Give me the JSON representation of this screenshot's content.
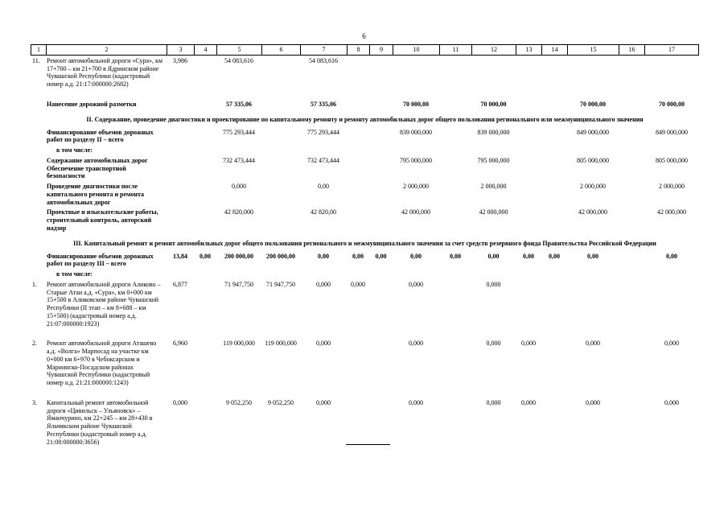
{
  "page": {
    "number": "6"
  },
  "table": {
    "column_headers": [
      "1",
      "2",
      "3",
      "4",
      "5",
      "6",
      "7",
      "8",
      "9",
      "10",
      "11",
      "12",
      "13",
      "14",
      "15",
      "16",
      "17"
    ],
    "rows": [
      {
        "type": "item",
        "num": "11.",
        "name": "Ремонт автомобильной дороги «Сура», км 17+700 – км 21+700 в Ядринском районе Чувашской Республики (кадастровый номер а.д. 21:17:000000:2682)",
        "bold": false,
        "values": {
          "3": "3,986",
          "5": "54 083,616",
          "7": "54 083,616"
        }
      },
      {
        "type": "total",
        "name": "Нанесение дорожной разметки",
        "bold": true,
        "values_bold": true,
        "values": {
          "5": "57 335,06",
          "7": "57 335,06",
          "10": "70 000,00",
          "12": "70 000,00",
          "15": "70 000,00",
          "17": "70 000,00"
        }
      },
      {
        "type": "section",
        "name": "II. Содержание, проведение диагностики и проектирование по капитальному ремонту и ремонту автомобильных дорог общего пользования регионального или межмуниципального значения"
      },
      {
        "type": "total",
        "name": "Финансирование объемов дорожных работ по разделу II – всего",
        "bold": true,
        "values": {
          "5": "775 293,444",
          "7": "775 293,444",
          "10": "839 000,000",
          "12": "839 000,000",
          "15": "849 000,000",
          "17": "849 000,000"
        }
      },
      {
        "type": "note",
        "name": "в том числе:",
        "bold": true
      },
      {
        "type": "total",
        "name": "Содержание автомобильных дорог Обеспечение транспортной безопасности",
        "bold": true,
        "values": {
          "5": "732 473,444",
          "7": "732 473,444",
          "10": "795 000,000",
          "12": "795 000,000",
          "15": "805 000,000",
          "17": "805 000,000"
        }
      },
      {
        "type": "total",
        "name": "Проведение диагностики после капитального ремонта и ремонта автомобильных дорог",
        "bold": true,
        "values": {
          "5": "0,000",
          "7": "0,00",
          "10": "2 000,000",
          "12": "2 000,000",
          "15": "2 000,000",
          "17": "2 000,000"
        }
      },
      {
        "type": "total",
        "name": "Проектные и изыскательские работы, строительный контроль, авторский надзор",
        "bold": true,
        "values": {
          "5": "42 820,000",
          "7": "42 820,00",
          "10": "42 000,000",
          "12": "42 000,000",
          "15": "42 000,000",
          "17": "42 000,000"
        }
      },
      {
        "type": "section",
        "name": "III. Капитальный ремонт и ремонт автомобильных дорог общего пользования регионального и межмуниципального значения за счет средств резервного фонда Правительства Российской Федерации"
      },
      {
        "type": "total",
        "name": "Финансирование объемов дорожных работ по разделу III – всего",
        "bold": true,
        "values_bold": true,
        "values": {
          "3": "13,84",
          "4": "0,00",
          "5": "200 000,00",
          "6": "200 000,00",
          "7": "0,00",
          "8": "0,00",
          "9": "0,00",
          "10": "0,00",
          "11": "0,00",
          "12": "0,00",
          "13": "0,00",
          "14": "0,00",
          "15": "0,00",
          "17": "0,00"
        }
      },
      {
        "type": "note",
        "name": "в том числе:",
        "bold": true
      },
      {
        "type": "item",
        "num": "1.",
        "name": "Ремонт автомобильной дороги Аликово – Старые Атаи а.д. «Сура», км 0+000 км 15+500 в Аликовском районе Чувашской Республики (II этап – км 8+688 – км 15+500) (кадастровый номер а.д. 21:07:000000:1923)",
        "bold": false,
        "values": {
          "3": "6,877",
          "5": "71 947,750",
          "6": "71 947,750",
          "7": "0,000",
          "8": "0,000",
          "10": "0,000",
          "12": "0,000"
        }
      },
      {
        "type": "item",
        "num": "2.",
        "name": "Ремонт автомобильной дороги Аташево а.д. «Волга» Марпосад на участке км 0+000 км 6+970 в Чебоксарском и Мариинско-Посадском районах Чувашской Республики (кадастровый номер а.д. 21:21:000000:1243)",
        "bold": false,
        "values": {
          "3": "6,960",
          "5": "119 000,000",
          "6": "119 000,000",
          "7": "0,000",
          "10": "0,000",
          "12": "0,000",
          "13": "0,000",
          "15": "0,000",
          "17": "0,000"
        }
      },
      {
        "type": "item",
        "num": "3.",
        "name": "Капитальный ремонт автомобильной дороги «Цивильск – Ульяновск» – Яманчурино, км 22+245 – км 28+430 в Яльчикском районе Чувашской Республики (кадастровый номер а.д. 21:08:000000:3656)",
        "bold": false,
        "values": {
          "3": "0,000",
          "5": "9 052,250",
          "6": "9 052,250",
          "7": "0,000",
          "10": "0,000",
          "12": "0,000",
          "13": "0,000",
          "15": "0,000",
          "17": "0,000"
        }
      }
    ]
  }
}
